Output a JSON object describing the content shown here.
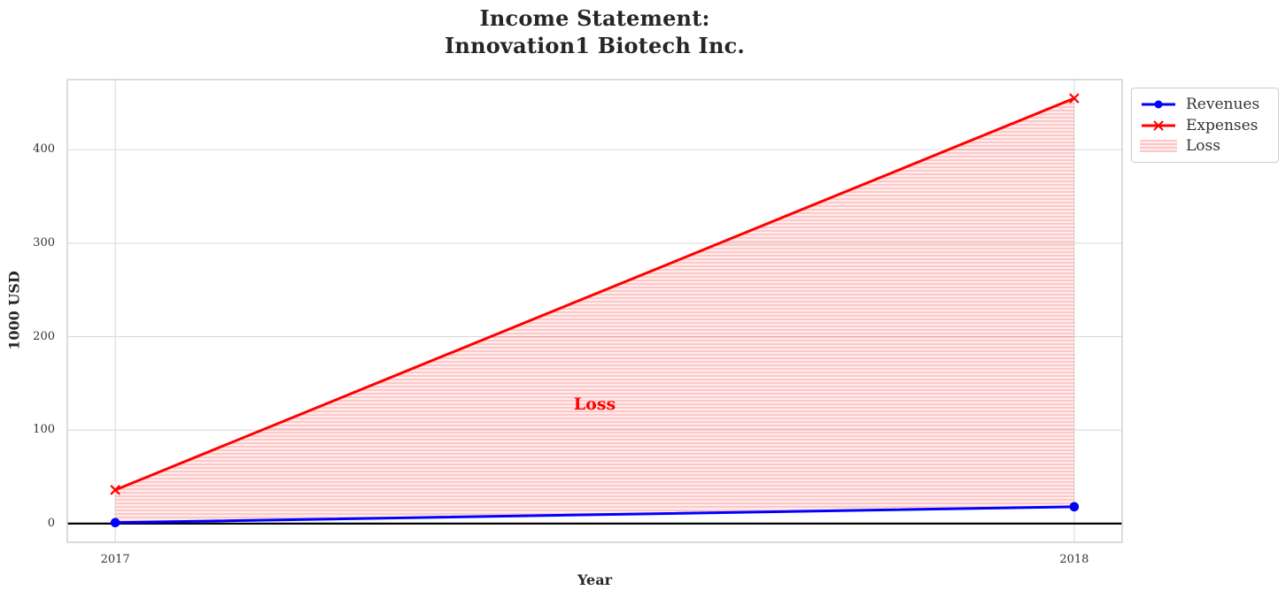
{
  "chart_data": {
    "type": "line",
    "title": "Income Statement:\nInnovation1 Biotech Inc.",
    "title_lines": [
      "Income Statement:",
      "Innovation1 Biotech Inc."
    ],
    "xlabel": "Year",
    "ylabel": "1000 USD",
    "x": [
      2017,
      2018
    ],
    "xtick_labels": [
      "2017",
      "2018"
    ],
    "yticks": [
      0,
      100,
      200,
      300,
      400
    ],
    "ytick_labels": [
      "0",
      "100",
      "200",
      "300",
      "400"
    ],
    "xlim": [
      2016.95,
      2018.05
    ],
    "ylim": [
      -20,
      475
    ],
    "grid": true,
    "series": [
      {
        "name": "Revenues",
        "color": "#0000ff",
        "marker": "circle",
        "values": [
          1,
          18
        ]
      },
      {
        "name": "Expenses",
        "color": "#ff0000",
        "marker": "x",
        "values": [
          36,
          455
        ]
      }
    ],
    "loss_fill": {
      "label": "Loss",
      "between": [
        "Expenses",
        "Revenues"
      ],
      "color": "#ff0000",
      "hatch": "-"
    },
    "annotation": {
      "text": "Loss",
      "x": 2017.5,
      "y": 128,
      "color": "#ff0000"
    },
    "zero_line": {
      "y": 0,
      "color": "#000000"
    },
    "legend": {
      "position": "outside-top-right",
      "entries": [
        {
          "label": "Revenues"
        },
        {
          "label": "Expenses"
        },
        {
          "label": "Loss"
        }
      ]
    },
    "colors": {
      "revenues": "#0000ff",
      "expenses": "#ff0000",
      "grid": "#dcdcdc",
      "spine": "#cccccc",
      "text": "#262626",
      "tick_text": "#333333",
      "loss_text": "#ff0000"
    }
  }
}
